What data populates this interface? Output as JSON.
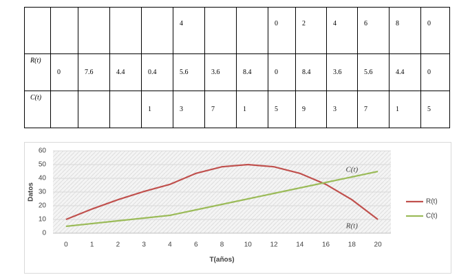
{
  "table": {
    "rows": [
      [
        null,
        null,
        null,
        null,
        null,
        "4",
        null,
        null,
        "0",
        "2",
        "4",
        "6",
        "8",
        "0"
      ],
      [
        "R(t)",
        "0",
        "7.6",
        "4.4",
        "0.4",
        "5.6",
        "3.6",
        "8.4",
        "0",
        "8.4",
        "3.6",
        "5.6",
        "4.4",
        "0"
      ],
      [
        "C(t)",
        null,
        null,
        null,
        "1",
        "3",
        "7",
        "1",
        "5",
        "9",
        "3",
        "7",
        "1",
        "5"
      ]
    ]
  },
  "chart_data": {
    "type": "line",
    "categories": [
      "0",
      "1",
      "2",
      "3",
      "4",
      "6",
      "8",
      "10",
      "12",
      "14",
      "16",
      "18",
      "20"
    ],
    "series": [
      {
        "name": "R(t)",
        "color": "#c0504d",
        "values": [
          10,
          17.6,
          24.4,
          30.4,
          35.6,
          43.6,
          48.4,
          50,
          48.4,
          43.6,
          35.6,
          24.4,
          10
        ]
      },
      {
        "name": "C(t)",
        "color": "#9bbb59",
        "values": [
          5,
          7,
          9,
          11,
          13,
          17,
          21,
          25,
          29,
          33,
          37,
          41,
          45
        ]
      }
    ],
    "ylim": [
      0,
      60
    ],
    "yticks": [
      0,
      10,
      20,
      30,
      40,
      50,
      60
    ],
    "grid": true,
    "ylabel": "Datos",
    "xlabel": "T(años)",
    "legend": "right",
    "annotations": [
      {
        "text": "C(t)",
        "x": "18",
        "y": 46
      },
      {
        "text": "R(t)",
        "x": "18",
        "y": 5
      }
    ]
  }
}
